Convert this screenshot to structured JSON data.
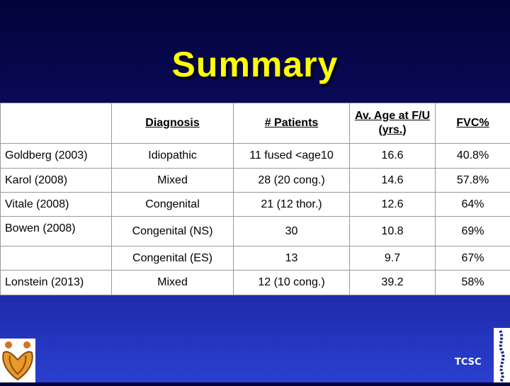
{
  "title": "Summary",
  "table": {
    "headers": [
      "",
      "Diagnosis",
      "# Patients",
      "Av. Age at F/U (yrs.)",
      "FVC%"
    ],
    "rows": [
      [
        "Goldberg (2003)",
        "Idiopathic",
        "11 fused <age10",
        "16.6",
        "40.8%"
      ],
      [
        "Karol (2008)",
        "Mixed",
        "28 (20 cong.)",
        "14.6",
        "57.8%"
      ],
      [
        "Vitale (2008)",
        "Congenital",
        "21 (12 thor.)",
        "12.6",
        "64%"
      ],
      [
        "Bowen (2008)",
        "Congenital (NS)",
        "30",
        "10.8",
        "69%"
      ],
      [
        "",
        "Congenital (ES)",
        "13",
        "9.7",
        "67%"
      ],
      [
        "Lonstein (2013)",
        "Mixed",
        "12 (10 cong.)",
        "39.2",
        "58%"
      ]
    ]
  },
  "footer": {
    "left_logo_icon": "heart-figures-logo-icon",
    "right_logo_icon": "spine-logo-icon",
    "label": "TCSC"
  },
  "colors": {
    "title": "#ffff00",
    "background_top": "#03033a",
    "background_bottom": "#2a3fd0"
  }
}
